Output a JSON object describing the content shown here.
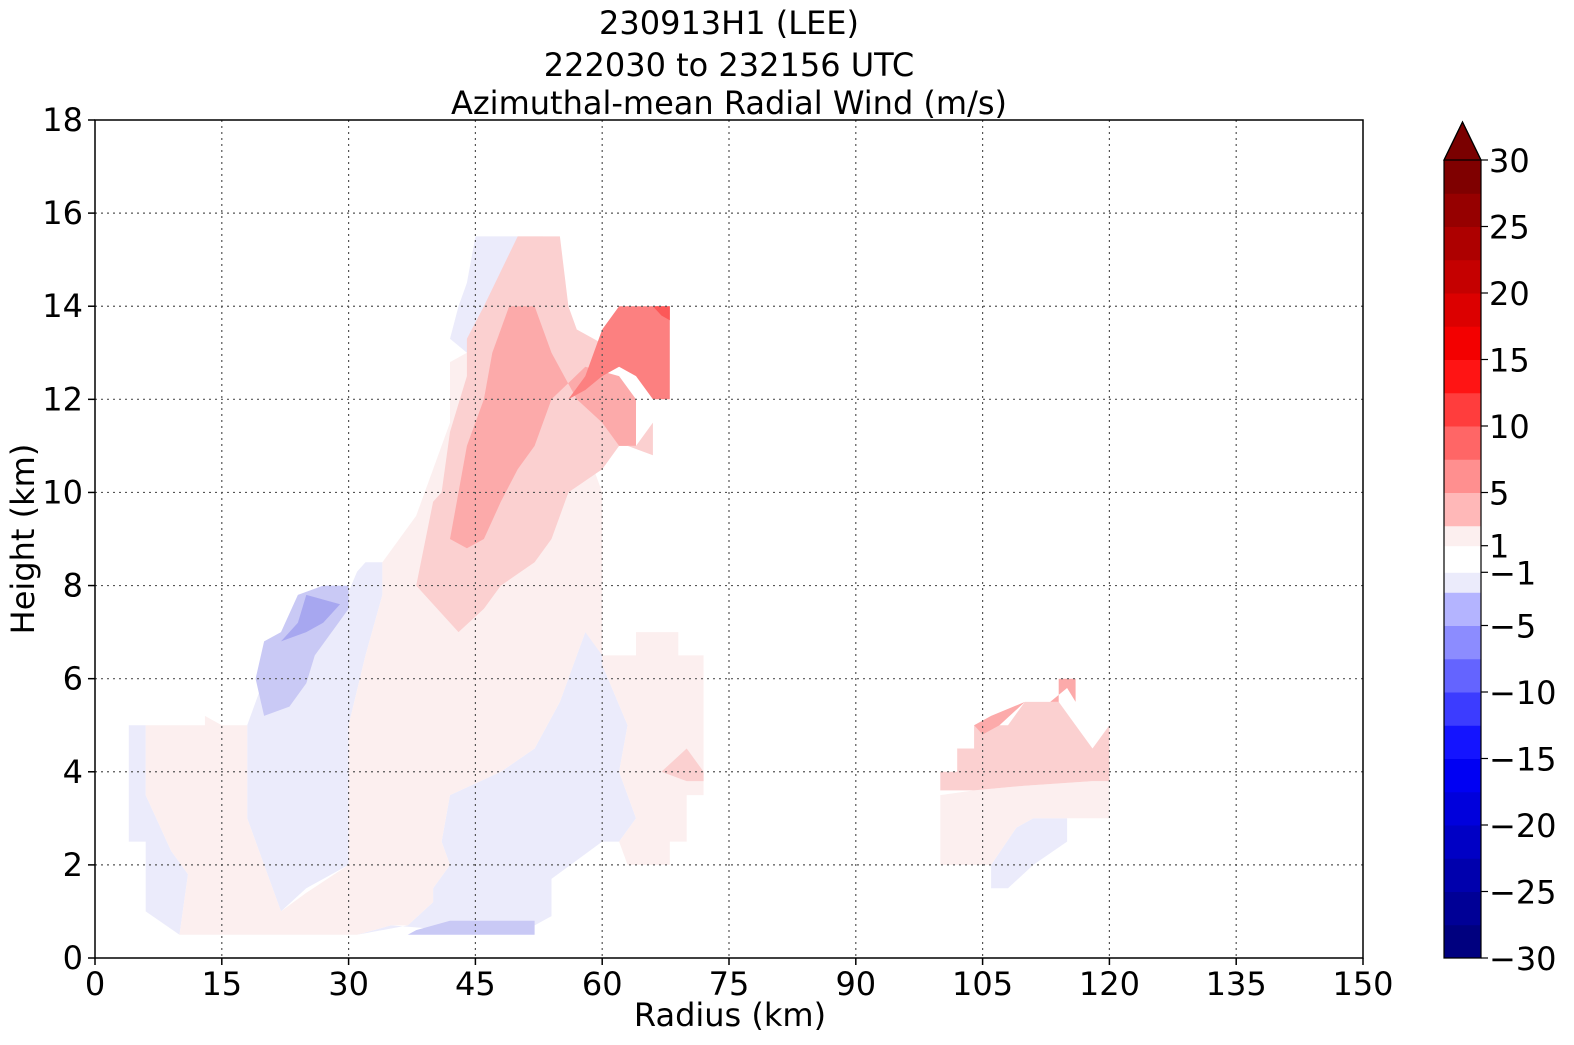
{
  "chart_data": {
    "type": "contour",
    "title": [
      "230913H1 (LEE)",
      "222030 to 232156 UTC",
      "Azimuthal-mean Radial Wind (m/s)"
    ],
    "xlabel": "Radius (km)",
    "ylabel": "Height (km)",
    "xlim": [
      0,
      150
    ],
    "ylim": [
      0,
      18
    ],
    "xticks": [
      0,
      15,
      30,
      45,
      60,
      75,
      90,
      105,
      120,
      135,
      150
    ],
    "yticks": [
      0,
      2,
      4,
      6,
      8,
      10,
      12,
      14,
      16,
      18
    ],
    "grid": true,
    "colorbar": {
      "min": -30,
      "max": 30,
      "ticks": [
        30,
        25,
        20,
        15,
        10,
        5,
        1,
        -1,
        -5,
        -10,
        -15,
        -20,
        -25,
        -30
      ],
      "extend": "max",
      "levels": [
        -30,
        -27.5,
        -25,
        -22.5,
        -20,
        -17.5,
        -15,
        -12.5,
        -10,
        -7.5,
        -5,
        -2.5,
        -1,
        1,
        2.5,
        5,
        7.5,
        10,
        12.5,
        15,
        17.5,
        20,
        22.5,
        25,
        27.5,
        30
      ]
    },
    "regions": [
      {
        "name": "neg-0-2.5",
        "value": -1.5,
        "color": "#ebebfb",
        "points": [
          [
            4,
            5
          ],
          [
            6,
            5
          ],
          [
            6,
            3.5
          ],
          [
            9,
            2.3
          ],
          [
            11,
            1.8
          ],
          [
            10,
            0.5
          ],
          [
            6,
            1
          ],
          [
            6,
            2.5
          ],
          [
            4,
            2.5
          ]
        ]
      },
      {
        "name": "neg-0-2.5",
        "value": -1.5,
        "color": "#ebebfb",
        "points": [
          [
            18,
            5
          ],
          [
            20,
            6
          ],
          [
            23,
            5.8
          ],
          [
            28,
            7
          ],
          [
            31,
            8.3
          ],
          [
            32,
            8.5
          ],
          [
            34,
            8.5
          ],
          [
            34,
            7.8
          ],
          [
            32,
            6.5
          ],
          [
            30,
            5
          ],
          [
            30,
            3
          ],
          [
            30,
            2
          ],
          [
            25,
            1.5
          ],
          [
            22,
            1
          ],
          [
            20,
            2
          ],
          [
            18,
            3
          ]
        ]
      },
      {
        "name": "neg-0-2.5",
        "value": -1.5,
        "color": "#ebebfb",
        "points": [
          [
            57,
            6.5
          ],
          [
            58,
            7
          ],
          [
            60,
            7.6
          ],
          [
            60,
            6.3
          ],
          [
            63,
            5
          ],
          [
            62,
            4
          ],
          [
            64,
            3
          ],
          [
            62,
            2.5
          ],
          [
            60,
            2.5
          ],
          [
            54,
            1.7
          ],
          [
            54,
            0.9
          ],
          [
            52,
            0.7
          ],
          [
            48,
            0.6
          ],
          [
            42,
            0.6
          ],
          [
            35,
            0.7
          ],
          [
            31,
            0.5
          ],
          [
            37,
            0.7
          ],
          [
            40,
            1.2
          ],
          [
            40,
            1.5
          ],
          [
            42,
            2
          ],
          [
            41,
            2.5
          ],
          [
            42,
            3.5
          ],
          [
            48,
            4
          ],
          [
            52,
            4.5
          ],
          [
            55,
            5.5
          ]
        ]
      },
      {
        "name": "neg-0-2.5",
        "value": -1.5,
        "color": "#ebebfb",
        "points": [
          [
            42,
            13.3
          ],
          [
            43,
            14
          ],
          [
            44,
            14.5
          ],
          [
            45,
            15.5
          ],
          [
            48,
            15.5
          ],
          [
            50,
            15.5
          ],
          [
            48,
            14.6
          ],
          [
            46,
            14
          ],
          [
            44,
            13
          ]
        ]
      },
      {
        "name": "neg-0-2.5",
        "value": -1.5,
        "color": "#ebebfb",
        "points": [
          [
            106,
            2
          ],
          [
            109,
            2.8
          ],
          [
            111,
            3
          ],
          [
            115,
            3
          ],
          [
            115,
            2.5
          ],
          [
            111,
            2
          ],
          [
            108,
            1.5
          ],
          [
            106,
            1.5
          ]
        ]
      },
      {
        "name": "neg-2.5-5",
        "value": -3.5,
        "color": "#c9c9f5",
        "points": [
          [
            19,
            6
          ],
          [
            20,
            6.8
          ],
          [
            22,
            7
          ],
          [
            24,
            7.8
          ],
          [
            27,
            8
          ],
          [
            30,
            8
          ],
          [
            30,
            7.5
          ],
          [
            28,
            7
          ],
          [
            26,
            6.5
          ],
          [
            25,
            5.9
          ],
          [
            23,
            5.4
          ],
          [
            20,
            5.2
          ]
        ]
      },
      {
        "name": "neg-2.5-5",
        "value": -3.5,
        "color": "#c9c9f5",
        "points": [
          [
            37,
            0.5
          ],
          [
            44,
            0.5
          ],
          [
            52,
            0.5
          ],
          [
            52,
            0.8
          ],
          [
            48,
            0.8
          ],
          [
            42,
            0.8
          ],
          [
            38,
            0.6
          ]
        ]
      },
      {
        "name": "neg-5-7.5",
        "value": -6,
        "color": "#a7a7f0",
        "points": [
          [
            22,
            6.8
          ],
          [
            24,
            7.2
          ],
          [
            25,
            7.8
          ],
          [
            29,
            7.6
          ],
          [
            27,
            7.2
          ],
          [
            25,
            7
          ]
        ]
      },
      {
        "name": "pos-0-2.5",
        "value": 1.5,
        "color": "#fcefef",
        "points": [
          [
            4,
            4.8
          ],
          [
            6,
            5
          ],
          [
            9,
            5
          ],
          [
            11,
            5
          ],
          [
            13,
            5
          ],
          [
            13,
            5.2
          ],
          [
            15,
            5
          ],
          [
            18,
            5
          ],
          [
            18,
            3
          ],
          [
            20,
            2
          ],
          [
            22,
            1
          ],
          [
            25,
            1.4
          ],
          [
            30,
            2
          ],
          [
            30,
            3
          ],
          [
            30,
            5
          ],
          [
            32,
            6.5
          ],
          [
            34,
            7.8
          ],
          [
            34,
            8.5
          ],
          [
            36,
            9
          ],
          [
            38,
            9.5
          ],
          [
            40,
            10.5
          ],
          [
            42,
            11.5
          ],
          [
            42,
            12.8
          ],
          [
            44,
            13
          ],
          [
            46,
            14
          ],
          [
            48,
            14.6
          ],
          [
            50,
            15.5
          ],
          [
            53,
            15.5
          ],
          [
            55,
            14
          ],
          [
            57,
            12.5
          ],
          [
            58,
            11
          ],
          [
            60,
            10
          ],
          [
            60,
            9
          ],
          [
            60,
            7.6
          ],
          [
            60,
            6.3
          ],
          [
            63,
            5
          ],
          [
            62,
            4
          ],
          [
            64,
            3
          ],
          [
            62,
            2.5
          ],
          [
            63,
            2
          ],
          [
            68,
            2
          ],
          [
            68,
            2.5
          ],
          [
            70,
            2.5
          ],
          [
            70,
            3.5
          ],
          [
            72,
            3.5
          ],
          [
            72,
            6.5
          ],
          [
            69,
            6.5
          ],
          [
            69,
            7
          ],
          [
            64,
            7
          ],
          [
            64,
            6.5
          ],
          [
            60,
            6.5
          ],
          [
            58,
            7
          ],
          [
            57,
            6.5
          ],
          [
            55,
            5.5
          ],
          [
            52,
            4.5
          ],
          [
            48,
            4
          ],
          [
            42,
            3.5
          ],
          [
            41,
            2.5
          ],
          [
            42,
            2
          ],
          [
            40,
            1.5
          ],
          [
            40,
            1.2
          ],
          [
            37,
            0.7
          ],
          [
            35,
            0.7
          ],
          [
            31,
            0.5
          ],
          [
            21,
            0.5
          ],
          [
            17,
            0.5
          ],
          [
            10,
            0.5
          ],
          [
            11,
            1.8
          ],
          [
            9,
            2.3
          ],
          [
            6,
            3.5
          ],
          [
            6,
            5
          ]
        ]
      },
      {
        "name": "pos-0-2.5",
        "value": 1.5,
        "color": "#fcefef",
        "points": [
          [
            100,
            2
          ],
          [
            100,
            3.5
          ],
          [
            104,
            3.6
          ],
          [
            110,
            3.7
          ],
          [
            118,
            3.8
          ],
          [
            120,
            3.8
          ],
          [
            120,
            3
          ],
          [
            118,
            3
          ],
          [
            115,
            3
          ],
          [
            111,
            3
          ],
          [
            109,
            2.8
          ],
          [
            106,
            2
          ]
        ]
      },
      {
        "name": "pos-2.5-5",
        "value": 3.5,
        "color": "#fbd0d0",
        "points": [
          [
            38,
            8
          ],
          [
            40,
            9.8
          ],
          [
            41,
            10
          ],
          [
            42,
            11.3
          ],
          [
            44,
            12.5
          ],
          [
            44,
            13.3
          ],
          [
            46,
            14
          ],
          [
            50,
            15.5
          ],
          [
            55,
            15.5
          ],
          [
            56,
            14
          ],
          [
            57,
            13.5
          ],
          [
            60,
            13.2
          ],
          [
            61,
            12
          ],
          [
            63,
            11
          ],
          [
            66,
            10.8
          ],
          [
            66,
            11.5
          ],
          [
            64,
            11
          ],
          [
            62,
            11
          ],
          [
            60,
            10.5
          ],
          [
            56,
            10
          ],
          [
            54,
            9
          ],
          [
            52,
            8.5
          ],
          [
            48,
            8
          ],
          [
            46,
            7.5
          ],
          [
            43,
            7
          ]
        ]
      },
      {
        "name": "pos-2.5-5",
        "value": 3.5,
        "color": "#fbd0d0",
        "points": [
          [
            67,
            4
          ],
          [
            70,
            4.5
          ],
          [
            72,
            4
          ],
          [
            72,
            3.8
          ],
          [
            70,
            3.8
          ]
        ]
      },
      {
        "name": "pos-2.5-5",
        "value": 3.5,
        "color": "#fbd0d0",
        "points": [
          [
            100,
            3.6
          ],
          [
            100,
            4
          ],
          [
            102,
            4
          ],
          [
            102,
            4.5
          ],
          [
            104,
            4.5
          ],
          [
            104,
            5
          ],
          [
            108,
            5
          ],
          [
            110,
            5.5
          ],
          [
            114,
            5.5
          ],
          [
            116,
            5
          ],
          [
            118,
            4.5
          ],
          [
            120,
            5
          ],
          [
            120,
            3.8
          ],
          [
            118,
            3.8
          ],
          [
            110,
            3.7
          ],
          [
            104,
            3.6
          ]
        ]
      },
      {
        "name": "pos-5-7.5",
        "value": 6,
        "color": "#fcaaaa",
        "points": [
          [
            42,
            9
          ],
          [
            43,
            10
          ],
          [
            44,
            11
          ],
          [
            46,
            12
          ],
          [
            47,
            13
          ],
          [
            49,
            14
          ],
          [
            52,
            14
          ],
          [
            54,
            13
          ],
          [
            57,
            12
          ],
          [
            60,
            11.5
          ],
          [
            62,
            11
          ],
          [
            64,
            11
          ],
          [
            64,
            12
          ],
          [
            62,
            12.5
          ],
          [
            58,
            12.7
          ],
          [
            54,
            12
          ],
          [
            52,
            11
          ],
          [
            50,
            10.5
          ],
          [
            48,
            9.8
          ],
          [
            46,
            9
          ],
          [
            44,
            8.8
          ]
        ]
      },
      {
        "name": "pos-5-7.5",
        "value": 6,
        "color": "#fcaaaa",
        "points": [
          [
            104,
            5
          ],
          [
            105,
            4.8
          ],
          [
            107,
            5
          ],
          [
            110,
            5.5
          ],
          [
            113,
            5.5
          ],
          [
            115,
            5.8
          ],
          [
            116,
            5.5
          ],
          [
            116,
            6
          ],
          [
            114,
            6
          ],
          [
            114,
            5.5
          ],
          [
            110,
            5.5
          ],
          [
            106,
            5.2
          ]
        ]
      },
      {
        "name": "pos-7.5-10",
        "value": 8.5,
        "color": "#fc8080",
        "points": [
          [
            56,
            12
          ],
          [
            58,
            12.5
          ],
          [
            60,
            13.5
          ],
          [
            62,
            14
          ],
          [
            64,
            14
          ],
          [
            68,
            14
          ],
          [
            68,
            12
          ],
          [
            66,
            12
          ],
          [
            64,
            12.5
          ],
          [
            62,
            12.7
          ],
          [
            60,
            12.5
          ],
          [
            58,
            12.2
          ]
        ]
      },
      {
        "name": "pos-10-12.5",
        "value": 11,
        "color": "#fc5858",
        "points": [
          [
            66,
            14
          ],
          [
            68,
            14
          ],
          [
            68,
            13.7
          ],
          [
            67,
            13.8
          ]
        ]
      }
    ]
  }
}
